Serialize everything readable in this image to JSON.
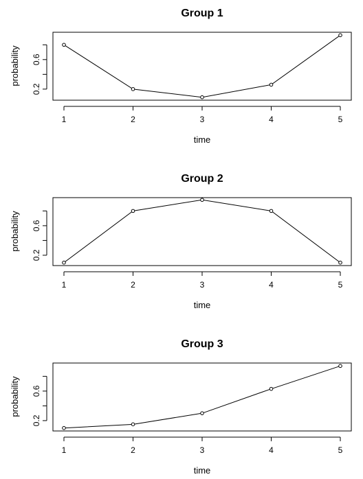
{
  "chart_data": [
    {
      "type": "line",
      "title": "Group 1",
      "xlabel": "time",
      "ylabel": "probability",
      "x": [
        1,
        2,
        3,
        4,
        5
      ],
      "series": [
        {
          "values": [
            0.8,
            0.2,
            0.09,
            0.26,
            0.93
          ]
        }
      ],
      "xticks": [
        "1",
        "2",
        "3",
        "4",
        "5"
      ],
      "yticks": [
        0.2,
        0.4,
        0.6,
        0.8
      ],
      "ytick_labels": [
        "0.2",
        "",
        "0.6",
        ""
      ],
      "ylim": [
        0.05,
        0.97
      ],
      "markers": "open-circle",
      "grid": false
    },
    {
      "type": "line",
      "title": "Group 2",
      "xlabel": "time",
      "ylabel": "probability",
      "x": [
        1,
        2,
        3,
        4,
        5
      ],
      "series": [
        {
          "values": [
            0.1,
            0.8,
            0.95,
            0.8,
            0.1
          ]
        }
      ],
      "xticks": [
        "1",
        "2",
        "3",
        "4",
        "5"
      ],
      "yticks": [
        0.2,
        0.4,
        0.6,
        0.8
      ],
      "ytick_labels": [
        "0.2",
        "",
        "0.6",
        ""
      ],
      "ylim": [
        0.06,
        0.98
      ],
      "markers": "open-circle",
      "grid": false
    },
    {
      "type": "line",
      "title": "Group 3",
      "xlabel": "time",
      "ylabel": "probability",
      "x": [
        1,
        2,
        3,
        4,
        5
      ],
      "series": [
        {
          "values": [
            0.1,
            0.15,
            0.3,
            0.63,
            0.94
          ]
        }
      ],
      "xticks": [
        "1",
        "2",
        "3",
        "4",
        "5"
      ],
      "yticks": [
        0.2,
        0.4,
        0.6,
        0.8
      ],
      "ytick_labels": [
        "0.2",
        "",
        "0.6",
        ""
      ],
      "ylim": [
        0.06,
        0.98
      ],
      "markers": "open-circle",
      "grid": false
    }
  ]
}
